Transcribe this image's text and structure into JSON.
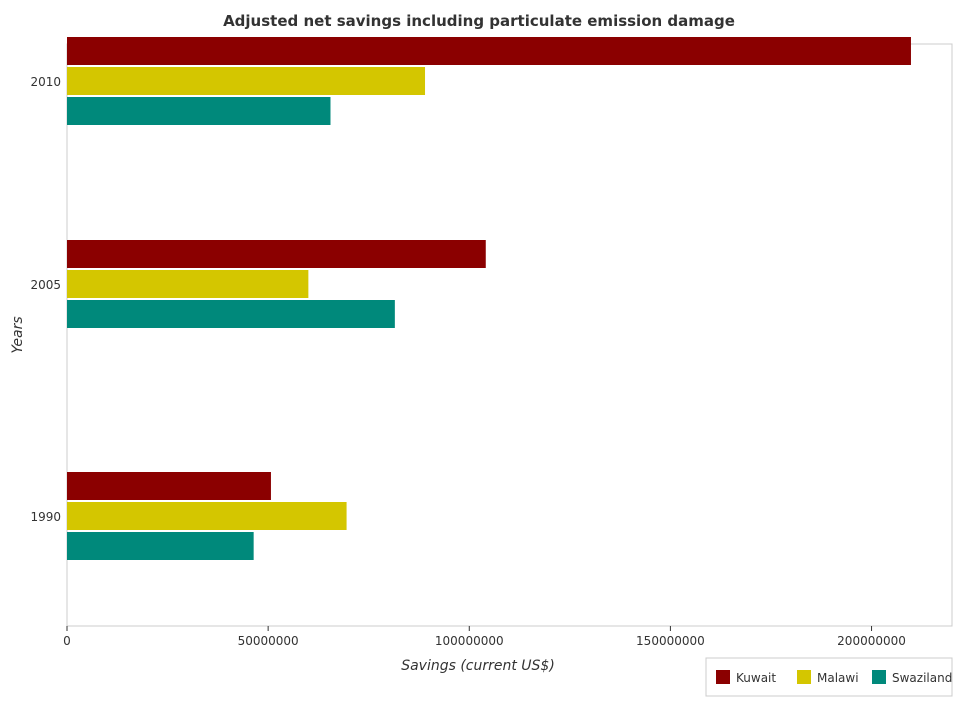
{
  "chart_data": {
    "type": "bar",
    "orientation": "horizontal",
    "title": "Adjusted net savings including particulate emission damage",
    "xlabel": "Savings (current US$)",
    "ylabel": "Years",
    "categories": [
      "1990",
      "2005",
      "2010"
    ],
    "xlim": [
      0,
      220000000
    ],
    "xticks": [
      0,
      50000000,
      100000000,
      150000000,
      200000000
    ],
    "xtick_labels": [
      "0",
      "50000000",
      "100000000",
      "150000000",
      "200000000"
    ],
    "grid": false,
    "legend_position": "bottom-right",
    "series": [
      {
        "name": "Kuwait",
        "color": "#8b0000",
        "values": [
          50700000,
          104100000,
          209800000
        ]
      },
      {
        "name": "Malawi",
        "color": "#d4c600",
        "values": [
          69500000,
          60000000,
          89000000
        ]
      },
      {
        "name": "Swaziland",
        "color": "#00897b",
        "values": [
          46400000,
          81500000,
          65500000
        ]
      }
    ]
  }
}
